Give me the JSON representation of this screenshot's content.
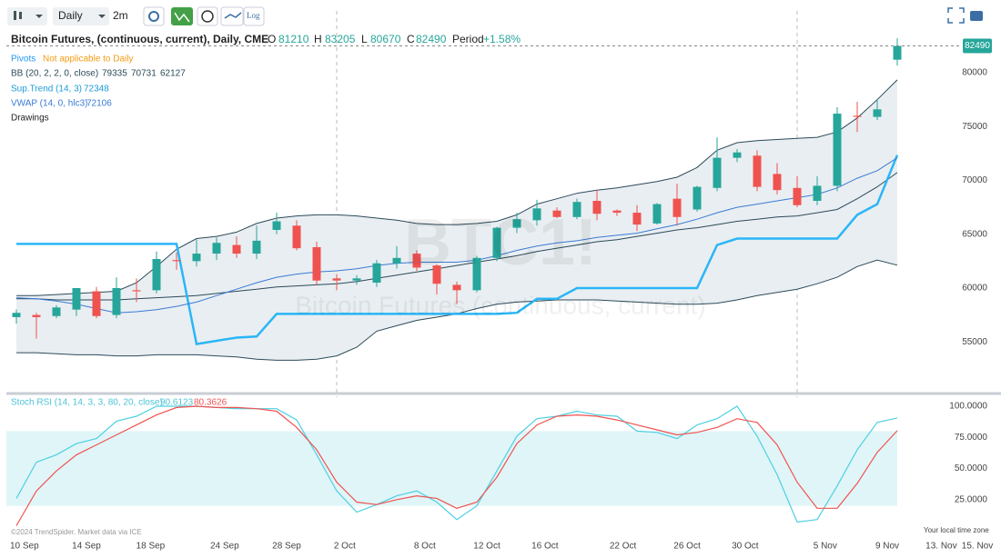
{
  "toolbar": {
    "interval": "Daily",
    "range": "2m",
    "log": "Log"
  },
  "chart_data": [
    {
      "type": "candlestick",
      "title": "Bitcoin Futures, (continuous, current), Daily, CME",
      "watermark": "BTC1!",
      "watermark_subtitle": "Bitcoin Futures (continuous, current)",
      "header": [
        {
          "label": "O",
          "value": 81210
        },
        {
          "label": "H",
          "value": 83205
        },
        {
          "label": "L",
          "value": 80670
        },
        {
          "label": "C",
          "value": 82490
        }
      ],
      "period": {
        "label": "Period",
        "value": 1.58,
        "value_label": "+1.58%"
      },
      "pivots": {
        "name": "Pivots",
        "note": "Not applicable to Daily"
      },
      "drawings": "Drawings",
      "up_color": "#26a69a",
      "down_color": "#ef5350",
      "candles": {
        "open": [
          57300,
          57500,
          57400,
          58000,
          59700,
          57500,
          59800,
          59800,
          62600,
          62500,
          63200,
          64000,
          63200,
          65400,
          65800,
          63800,
          60900,
          60700,
          60500,
          62300,
          63200,
          62100,
          60300,
          59800,
          62800,
          65600,
          66300,
          67200,
          66600,
          68100,
          67200,
          67000,
          66000,
          68300,
          67300,
          69300,
          72100,
          72300,
          70600,
          69300,
          68100,
          69500,
          76000,
          75900,
          81210
        ],
        "high": [
          58000,
          57700,
          58400,
          60000,
          60100,
          61000,
          60900,
          63400,
          63300,
          64500,
          64700,
          64800,
          65800,
          67000,
          66300,
          64300,
          61300,
          61200,
          62600,
          63900,
          63500,
          62200,
          60600,
          63000,
          65700,
          67000,
          68200,
          67500,
          68300,
          69100,
          67300,
          67700,
          67900,
          69700,
          69500,
          74000,
          72900,
          72800,
          71600,
          70400,
          70400,
          76800,
          77300,
          77600,
          83205
        ],
        "low": [
          56700,
          55300,
          57200,
          57400,
          57200,
          57200,
          58700,
          59500,
          61700,
          62000,
          62600,
          62800,
          62700,
          65000,
          63500,
          60300,
          59800,
          60300,
          60100,
          61800,
          61600,
          59400,
          58500,
          59600,
          62500,
          65100,
          65800,
          66500,
          66400,
          66300,
          66700,
          65300,
          65900,
          65800,
          67100,
          69000,
          71700,
          69000,
          68700,
          67500,
          67700,
          69000,
          74500,
          75600,
          80670
        ],
        "close": [
          57700,
          57300,
          58200,
          60000,
          57400,
          60000,
          59700,
          62700,
          62500,
          63200,
          64200,
          63200,
          64400,
          66200,
          63700,
          60700,
          60700,
          60900,
          62300,
          62800,
          61900,
          60400,
          59800,
          62800,
          65600,
          66400,
          67400,
          66600,
          68000,
          66900,
          67000,
          65900,
          67800,
          66600,
          69400,
          72100,
          72600,
          69400,
          69100,
          67700,
          69500,
          76200,
          75900,
          76600,
          82490
        ]
      },
      "indicators": [
        {
          "name": "BB (20, 2, 2, 0, close)",
          "color": "#2c4a5a",
          "fill": "#e9eef2",
          "lines": [
            {
              "values": [
                59300,
                59300,
                59400,
                59500,
                59600,
                59700,
                60500,
                62000,
                63600,
                64600,
                64800,
                65200,
                66000,
                66500,
                66700,
                66800,
                66800,
                66700,
                66500,
                66300,
                66000,
                65900,
                65900,
                66000,
                66200,
                66800,
                67800,
                68300,
                68800,
                69100,
                69300,
                69600,
                69900,
                70300,
                71200,
                72800,
                73500,
                73700,
                73800,
                73900,
                74000,
                74500,
                75800,
                77500,
                79335
              ]
            },
            {
              "values": [
                59000,
                59000,
                58900,
                58900,
                58900,
                58900,
                59000,
                59100,
                59200,
                59300,
                59500,
                59700,
                59900,
                60100,
                60200,
                60300,
                60400,
                60600,
                60900,
                61200,
                61500,
                61800,
                62100,
                62400,
                62700,
                63000,
                63400,
                63700,
                64000,
                64300,
                64500,
                64800,
                65100,
                65400,
                65600,
                65900,
                66200,
                66400,
                66600,
                66700,
                67000,
                67300,
                68300,
                69400,
                70731
              ]
            },
            {
              "values": [
                54000,
                54000,
                53900,
                53800,
                53800,
                53700,
                53700,
                53800,
                53800,
                53800,
                53700,
                53600,
                53400,
                53300,
                53300,
                53400,
                53700,
                54500,
                56000,
                56500,
                57000,
                57300,
                57600,
                58100,
                58500,
                58700,
                58800,
                58900,
                58900,
                58900,
                58800,
                58700,
                58600,
                58500,
                58500,
                58600,
                58900,
                59300,
                59600,
                59900,
                60400,
                61000,
                62000,
                62600,
                62127
              ]
            }
          ]
        },
        {
          "name": "Sup.Trend (14, 3)",
          "color": "#29b6f6",
          "lines": [
            {
              "values": [
                64100,
                64100,
                64100,
                64100,
                64100,
                64100,
                64100,
                64100,
                64100,
                54800,
                55100,
                55400,
                55500,
                57600,
                57600,
                57600,
                57600,
                57600,
                57600,
                57600,
                57600,
                57600,
                57600,
                57600,
                57600,
                57700,
                59000,
                59000,
                60000,
                60000,
                60000,
                60000,
                60000,
                60000,
                60000,
                64000,
                64600,
                64600,
                64600,
                64600,
                64600,
                64600,
                66800,
                67800,
                72348
              ]
            }
          ]
        },
        {
          "name": "VWAP (14, 0, hlc3)",
          "color": "#3a7bd5",
          "lines": [
            {
              "values": [
                59100,
                59000,
                58800,
                58500,
                58100,
                57700,
                57800,
                58000,
                58300,
                58700,
                59300,
                59900,
                60500,
                61000,
                61300,
                61500,
                61600,
                61800,
                62100,
                62300,
                62400,
                62400,
                62400,
                62600,
                63000,
                63500,
                63900,
                64200,
                64400,
                64700,
                64900,
                65100,
                65500,
                65900,
                66400,
                67000,
                67500,
                67800,
                68100,
                68400,
                68700,
                69300,
                70200,
                70900,
                72106
              ]
            }
          ]
        }
      ],
      "xlim": [
        -0.5,
        49.5
      ],
      "xticks": [
        {
          "value": 0.4,
          "label": "10 Sep"
        },
        {
          "value": 3.5,
          "label": "14 Sep"
        },
        {
          "value": 6.7,
          "label": "18 Sep"
        },
        {
          "value": 10.4,
          "label": "24 Sep"
        },
        {
          "value": 13.5,
          "label": "28 Sep"
        },
        {
          "value": 16.4,
          "label": "2 Oct"
        },
        {
          "value": 20.4,
          "label": "8 Oct"
        },
        {
          "value": 23.5,
          "label": "12 Oct"
        },
        {
          "value": 26.4,
          "label": "16 Oct"
        },
        {
          "value": 30.3,
          "label": "22 Oct"
        },
        {
          "value": 33.5,
          "label": "26 Oct"
        },
        {
          "value": 36.4,
          "label": "30 Oct"
        },
        {
          "value": 40.4,
          "label": "5 Nov"
        },
        {
          "value": 43.5,
          "label": "9 Nov"
        },
        {
          "value": 46.2,
          "label": "13. Nov"
        },
        {
          "value": 48,
          "label": "15. Nov"
        }
      ],
      "ylim": [
        50460,
        83380
      ],
      "yticks": [
        55000,
        60000,
        65000,
        70000,
        75000,
        80000
      ]
    },
    {
      "type": "line",
      "title": "Stoch RSI (14, 14, 3, 3, 80, 20, close)",
      "band": [
        20,
        80
      ],
      "band_color": "#e0f5f8",
      "series": [
        {
          "color": "#4dd0e1",
          "values": [
            26,
            55,
            61,
            70,
            74,
            88,
            92,
            100,
            100,
            100,
            99,
            98,
            98,
            98,
            89,
            61,
            32,
            15,
            21,
            28,
            32,
            23,
            9,
            20,
            48,
            76,
            90,
            92,
            96,
            93,
            92,
            80,
            79,
            74,
            85,
            90,
            100,
            76,
            45,
            7,
            9,
            36,
            65,
            87,
            90.6123
          ]
        },
        {
          "color": "#ef5350",
          "values": [
            4,
            32,
            48,
            61,
            69,
            77,
            85,
            93,
            99,
            100,
            99,
            99,
            98,
            96,
            83,
            65,
            39,
            23,
            21,
            25,
            28,
            26,
            18,
            23,
            43,
            70,
            85,
            92,
            93,
            92,
            89,
            85,
            81,
            77,
            79,
            83,
            90,
            87,
            69,
            39,
            18,
            18,
            38,
            63,
            80.3626
          ]
        }
      ],
      "ylim": [
        0,
        100
      ],
      "yticks": [
        {
          "value": 25,
          "label": "25.0000"
        },
        {
          "value": 50,
          "label": "50.0000"
        },
        {
          "value": 75,
          "label": "75.0000"
        },
        {
          "value": 100,
          "label": "100.0000"
        }
      ]
    }
  ],
  "footer": {
    "copyright": "©2024 TrendSpider. Market data via ICE",
    "timezone": "Your local time zone"
  }
}
